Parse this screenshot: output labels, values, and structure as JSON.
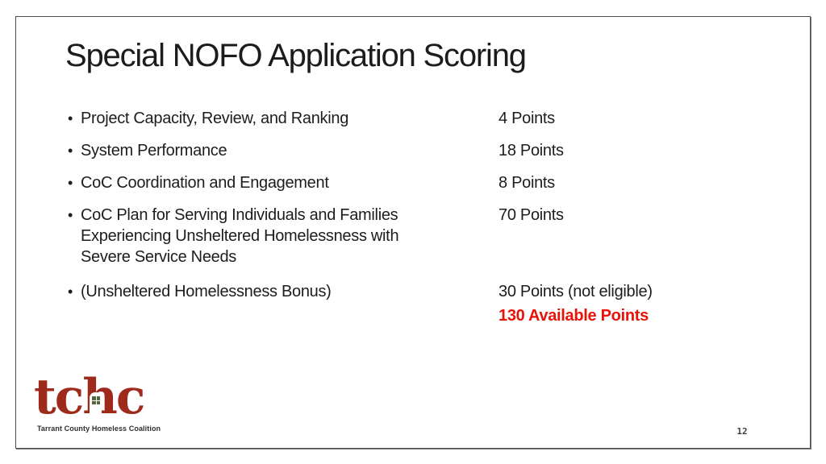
{
  "slide": {
    "title": "Special NOFO Application Scoring",
    "items": [
      {
        "label": "Project Capacity, Review, and Ranking",
        "points": "4 Points"
      },
      {
        "label": "System Performance",
        "points": "18 Points"
      },
      {
        "label": "CoC Coordination and Engagement",
        "points": "8 Points"
      },
      {
        "label": "CoC Plan for Serving Individuals and Families Experiencing Unsheltered Homelessness with Severe Service Needs",
        "points": "70 Points"
      },
      {
        "label": "(Unsheltered Homelessness Bonus)",
        "points": "30 Points (not eligible)"
      }
    ],
    "total": "130 Available Points",
    "total_color": "#e81309",
    "page_number": "12"
  },
  "logo": {
    "acronym": "tchc",
    "tagline": "Tarrant County Homeless Coalition",
    "color": "#9e2a1c"
  }
}
